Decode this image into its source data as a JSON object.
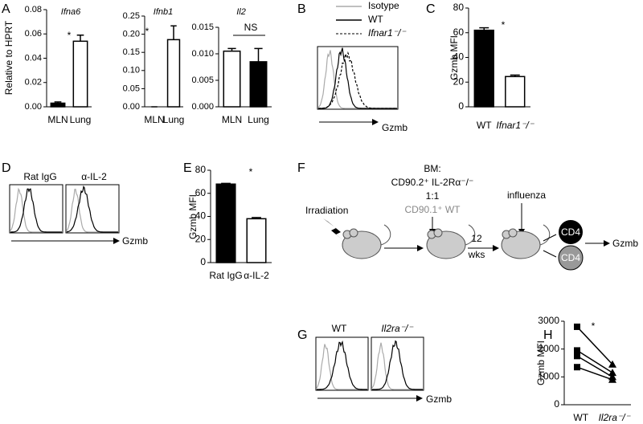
{
  "chart_data": [
    {
      "type": "bar",
      "title": "Ifna6",
      "ylabel": "Relative to HPRT",
      "categories": [
        "MLN",
        "Lung"
      ],
      "values": [
        0.003,
        0.054
      ],
      "errors": [
        0.001,
        0.005
      ],
      "colors": [
        "#000000",
        "#ffffff"
      ],
      "ylim": [
        0,
        0.08
      ],
      "yticks": [
        {
          "value": 0,
          "label": "0.00"
        },
        0.02,
        0.04,
        0.06,
        0.08
      ],
      "annotations": [
        "*"
      ]
    },
    {
      "type": "bar",
      "title": "Ifnb1",
      "categories": [
        "MLN",
        "Lung"
      ],
      "values": [
        0,
        0.185
      ],
      "errors": [
        0,
        0.038
      ],
      "colors": [
        "#000000",
        "#ffffff"
      ],
      "ylim": [
        0,
        0.25
      ],
      "yticks": [
        {
          "value": 0,
          "label": "0.00"
        },
        0.05,
        {
          "value": 0.1,
          "label": "0.10"
        },
        0.15,
        {
          "value": 0.2,
          "label": "0.20"
        },
        0.25
      ],
      "annotations": [
        "*"
      ]
    },
    {
      "type": "bar",
      "title": "Il2",
      "categories": [
        "MLN",
        "Lung"
      ],
      "values": [
        0.0105,
        0.0085
      ],
      "errors": [
        0.0005,
        0.0025
      ],
      "colors": [
        "#ffffff",
        "#000000"
      ],
      "ylim": [
        0,
        0.015
      ],
      "yticks": [
        {
          "value": 0,
          "label": "0.000"
        },
        0.005,
        {
          "value": 0.01,
          "label": "0.010"
        },
        0.015
      ],
      "annotations": [
        "NS"
      ]
    },
    {
      "type": "bar",
      "ylabel": "Gzmb MFI",
      "categories": [
        "WT",
        "Ifnar1⁻/⁻"
      ],
      "values": [
        62,
        24.5
      ],
      "errors": [
        2,
        1.2
      ],
      "colors": [
        "#000000",
        "#ffffff"
      ],
      "ylim": [
        0,
        80
      ],
      "yticks": [
        0,
        20,
        40,
        60,
        80
      ],
      "annotations": [
        "*"
      ]
    },
    {
      "type": "bar",
      "ylabel": "Gzmb MFI",
      "categories": [
        "Rat IgG",
        "α-IL-2"
      ],
      "values": [
        68,
        38
      ],
      "errors": [
        0.6,
        1
      ],
      "colors": [
        "#000000",
        "#ffffff"
      ],
      "ylim": [
        0,
        80
      ],
      "yticks": [
        0,
        20,
        40,
        60,
        80
      ],
      "annotations": [
        "*"
      ]
    },
    {
      "type": "line",
      "ylabel": "Gzmb MFI",
      "categories": [
        "WT",
        "Il2ra⁻/⁻"
      ],
      "color": "#000000",
      "markers": [
        "square",
        "triangle"
      ],
      "series": [
        {
          "values": [
            2800,
            1450
          ]
        },
        {
          "values": [
            1950,
            1150
          ]
        },
        {
          "values": [
            1750,
            1000
          ]
        },
        {
          "values": [
            1350,
            900
          ]
        }
      ],
      "ylim": [
        0,
        3000
      ],
      "yticks": [
        0,
        1000,
        2000,
        3000
      ],
      "annotations": [
        "*"
      ]
    }
  ],
  "panel_labels": [
    "A",
    "B",
    "C",
    "D",
    "E",
    "F",
    "G",
    "H"
  ],
  "panel_b": {
    "legend": [
      "Isotype",
      "WT",
      "Ifnar1⁻/⁻"
    ],
    "axis_label": "Gzmb"
  },
  "panel_d": {
    "labels": [
      "Rat IgG",
      "α-IL-2"
    ],
    "axis_label": "Gzmb"
  },
  "panel_f": {
    "bm_title": "BM:",
    "donor_1": "CD90.2⁺ IL-2Rα⁻/⁻",
    "ratio": "1:1",
    "donor_2": "CD90.1⁺ WT",
    "step_1": "Irradiation",
    "step_2": "influenza",
    "interval": "12",
    "interval_unit": "wks",
    "cell_1": "CD4",
    "cell_2": "CD4",
    "readout": "Gzmb"
  },
  "panel_g": {
    "labels": [
      "WT",
      "Il2ra⁻/⁻"
    ],
    "axis_label": "Gzmb"
  }
}
